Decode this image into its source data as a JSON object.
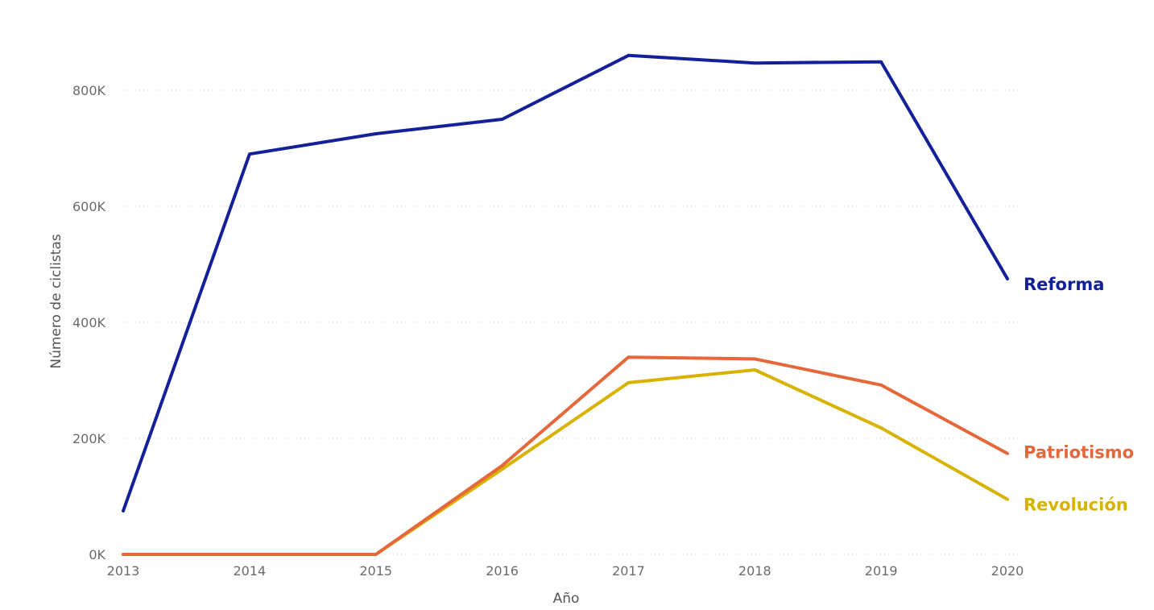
{
  "chart_data": {
    "type": "line",
    "xlabel": "Año",
    "ylabel": "Número de ciclistas",
    "x": [
      "2013",
      "2014",
      "2015",
      "2016",
      "2017",
      "2018",
      "2019",
      "2020"
    ],
    "ylim": [
      0,
      900000
    ],
    "yticks": [
      {
        "value": 0,
        "label": "0K"
      },
      {
        "value": 200000,
        "label": "200K"
      },
      {
        "value": 400000,
        "label": "400K"
      },
      {
        "value": 600000,
        "label": "600K"
      },
      {
        "value": 800000,
        "label": "800K"
      }
    ],
    "grid": true,
    "legend": "end-of-line labels",
    "series": [
      {
        "name": "Reforma",
        "color": "#13209a",
        "values": [
          75000,
          690000,
          725000,
          750000,
          860000,
          847000,
          849000,
          475000
        ]
      },
      {
        "name": "Patriotismo",
        "color": "#e5673a",
        "values": [
          0,
          0,
          0,
          153000,
          340000,
          337000,
          292000,
          174000
        ]
      },
      {
        "name": "Revolución",
        "color": "#d9b200",
        "values": [
          0,
          0,
          0,
          147000,
          296000,
          318000,
          218000,
          95000
        ]
      }
    ]
  }
}
